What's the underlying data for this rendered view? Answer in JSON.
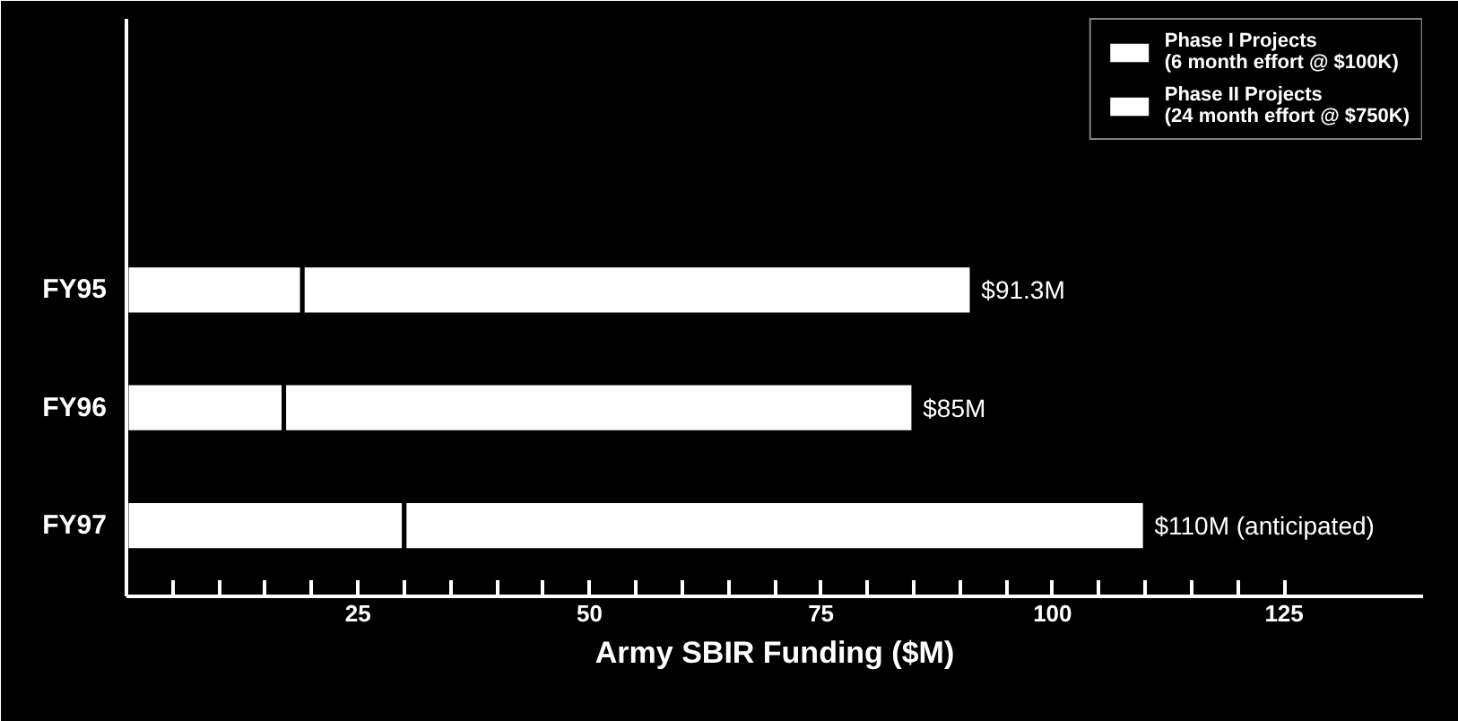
{
  "chart_data": {
    "type": "bar",
    "orientation": "horizontal",
    "stacked": true,
    "categories": [
      "FY95",
      "FY96",
      "FY97"
    ],
    "series": [
      {
        "name": "Phase I Projects\n(6 month effort @ $100K)",
        "color": "#ffffff",
        "values": [
          19,
          17,
          30
        ]
      },
      {
        "name": "Phase II Projects\n(24 month effort @ $750K)",
        "color": "#ffffff",
        "values": [
          72.3,
          68,
          80
        ]
      }
    ],
    "totals": [
      "$91.3M",
      "$85M",
      "$110M (anticipated)"
    ],
    "xlabel": "Army SBIR Funding ($M)",
    "xlim": [
      0,
      140
    ],
    "xticks": [
      {
        "value": 5,
        "label": null
      },
      {
        "value": 10,
        "label": null
      },
      {
        "value": 15,
        "label": null
      },
      {
        "value": 20,
        "label": null
      },
      25,
      {
        "value": 30,
        "label": null
      },
      {
        "value": 35,
        "label": null
      },
      {
        "value": 40,
        "label": null
      },
      {
        "value": 45,
        "label": null
      },
      50,
      {
        "value": 55,
        "label": null
      },
      {
        "value": 60,
        "label": null
      },
      {
        "value": 65,
        "label": null
      },
      {
        "value": 70,
        "label": null
      },
      75,
      {
        "value": 80,
        "label": null
      },
      {
        "value": 85,
        "label": null
      },
      {
        "value": 90,
        "label": null
      },
      {
        "value": 95,
        "label": null
      },
      100,
      {
        "value": 105,
        "label": null
      },
      {
        "value": 110,
        "label": null
      },
      {
        "value": 115,
        "label": null
      },
      {
        "value": 120,
        "label": null
      },
      125
    ],
    "grid": false,
    "legend": "top right"
  }
}
